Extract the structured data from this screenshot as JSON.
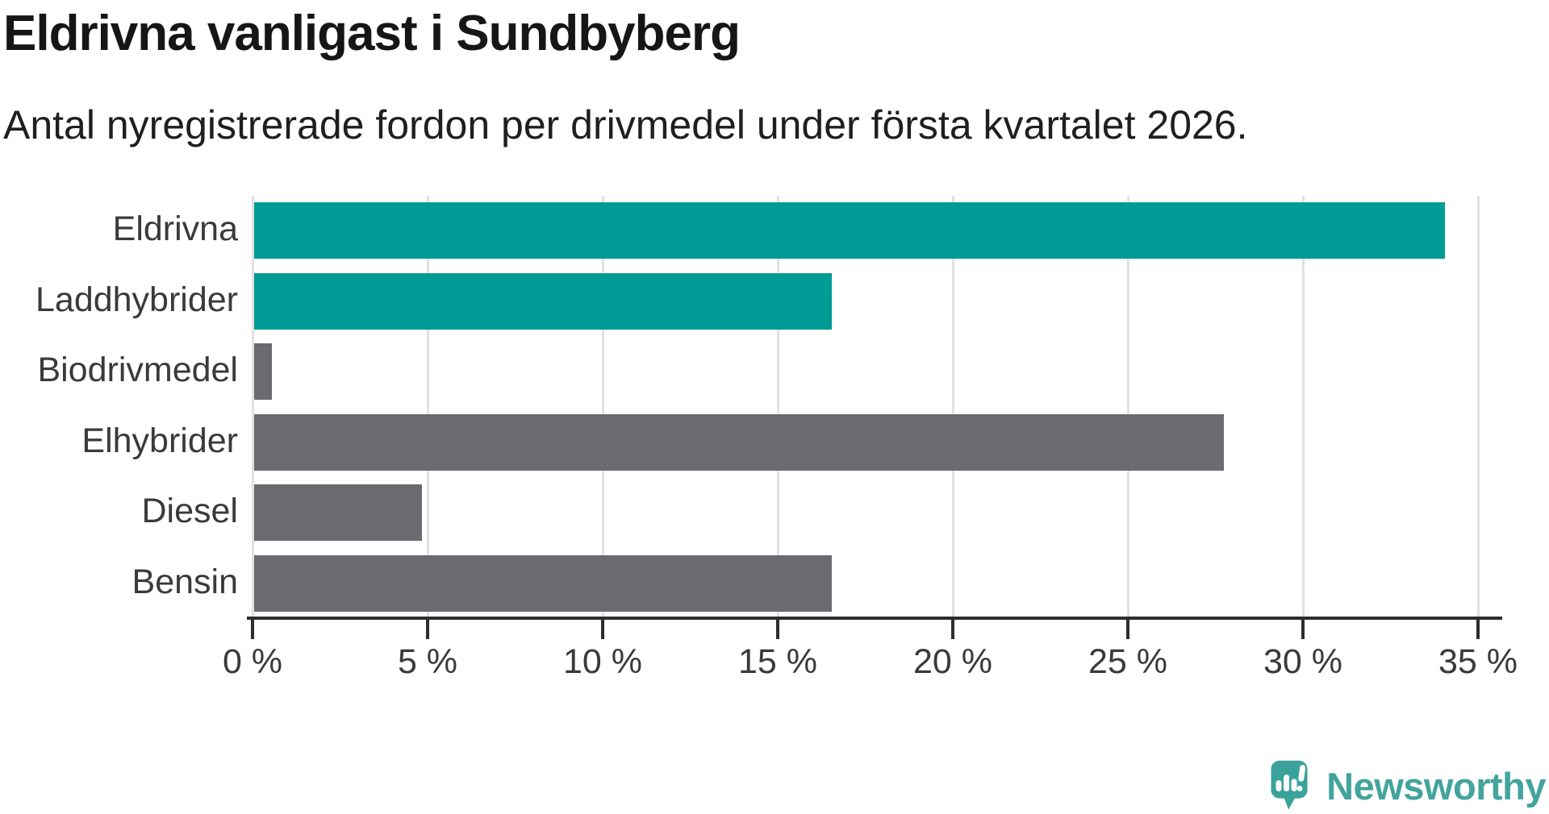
{
  "header": {
    "title": "Eldrivna vanligast i Sundbyberg",
    "subtitle": "Antal nyregistrerade fordon per drivmedel under första kvartalet 2026."
  },
  "chart_data": {
    "type": "bar",
    "orientation": "horizontal",
    "title": "Eldrivna vanligast i Sundbyberg",
    "subtitle": "Antal nyregistrerade fordon per drivmedel under första kvartalet 2026.",
    "categories": [
      "Eldrivna",
      "Laddhybrider",
      "Biodrivmedel",
      "Elhybrider",
      "Diesel",
      "Bensin"
    ],
    "values": [
      34.0,
      16.5,
      0.5,
      27.7,
      4.8,
      16.5
    ],
    "unit": "%",
    "bar_colors": [
      "#009B94",
      "#009B94",
      "#6A6A70",
      "#6A6A70",
      "#6A6A70",
      "#6A6A70"
    ],
    "x_tick_values": [
      0,
      5,
      10,
      15,
      20,
      25,
      30,
      35
    ],
    "x_tick_labels": [
      "0 %",
      "5 %",
      "10 %",
      "15 %",
      "20 %",
      "25 %",
      "30 %",
      "35 %"
    ],
    "xlim": [
      0,
      35
    ],
    "grid": true,
    "legend": "none",
    "colors": {
      "highlight_bar": "#009B94",
      "default_bar": "#6A6A70",
      "gridline": "#e1e1e1",
      "axis": "#2d2d2d",
      "label_text": "#3a3a3a"
    }
  },
  "branding": {
    "logo_text": "Newsworthy",
    "logo_color": "#43A49D",
    "icon_color": "#3AA29B",
    "icon": "newsworthy-speech-bubble-barchart-icon"
  }
}
